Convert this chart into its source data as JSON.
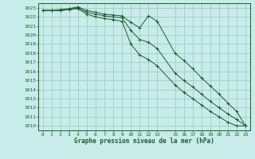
{
  "title": "Graphe pression niveau de la mer (hPa)",
  "background_color": "#c8ece9",
  "grid_color": "#96c8be",
  "line_color": "#1a5c2a",
  "xlim": [
    -0.5,
    23.5
  ],
  "ylim": [
    1009.5,
    1023.5
  ],
  "xtick_positions": [
    0,
    1,
    2,
    3,
    4,
    5,
    6,
    7,
    8,
    9,
    10,
    11,
    12,
    13,
    15,
    16,
    17,
    18,
    19,
    20,
    21,
    22,
    23
  ],
  "xtick_labels": [
    "0",
    "1",
    "2",
    "3",
    "4",
    "5",
    "6",
    "7",
    "8",
    "9",
    "10",
    "11",
    "12",
    "13",
    "15",
    "16",
    "17",
    "18",
    "19",
    "20",
    "21",
    "22",
    "23"
  ],
  "ytick_positions": [
    1010,
    1011,
    1012,
    1013,
    1014,
    1015,
    1016,
    1017,
    1018,
    1019,
    1020,
    1021,
    1022,
    1023
  ],
  "series": [
    {
      "x": [
        0,
        1,
        2,
        3,
        4,
        5,
        6,
        7,
        8,
        9,
        10,
        11,
        12,
        13,
        15,
        16,
        17,
        18,
        19,
        20,
        21,
        22,
        23
      ],
      "y": [
        1022.7,
        1022.7,
        1022.8,
        1022.9,
        1023.1,
        1022.7,
        1022.5,
        1022.3,
        1022.2,
        1022.1,
        1021.4,
        1020.8,
        1022.1,
        1021.5,
        1018.0,
        1017.2,
        1016.3,
        1015.3,
        1014.4,
        1013.5,
        1012.5,
        1011.6,
        1010.0
      ]
    },
    {
      "x": [
        0,
        1,
        2,
        3,
        4,
        5,
        6,
        7,
        8,
        9,
        10,
        11,
        12,
        13,
        15,
        16,
        17,
        18,
        19,
        20,
        21,
        22,
        23
      ],
      "y": [
        1022.7,
        1022.7,
        1022.7,
        1022.8,
        1023.0,
        1022.5,
        1022.3,
        1022.1,
        1022.0,
        1021.9,
        1020.5,
        1019.5,
        1019.2,
        1018.5,
        1015.8,
        1015.0,
        1014.3,
        1013.5,
        1012.7,
        1012.0,
        1011.3,
        1010.7,
        1010.0
      ]
    },
    {
      "x": [
        0,
        1,
        2,
        3,
        4,
        5,
        6,
        7,
        8,
        9,
        10,
        11,
        12,
        13,
        15,
        16,
        17,
        18,
        19,
        20,
        21,
        22,
        23
      ],
      "y": [
        1022.7,
        1022.7,
        1022.7,
        1022.8,
        1022.9,
        1022.3,
        1022.0,
        1021.8,
        1021.7,
        1021.5,
        1019.0,
        1017.8,
        1017.3,
        1016.6,
        1014.5,
        1013.7,
        1013.0,
        1012.3,
        1011.6,
        1011.0,
        1010.4,
        1010.0,
        1010.0
      ]
    }
  ]
}
